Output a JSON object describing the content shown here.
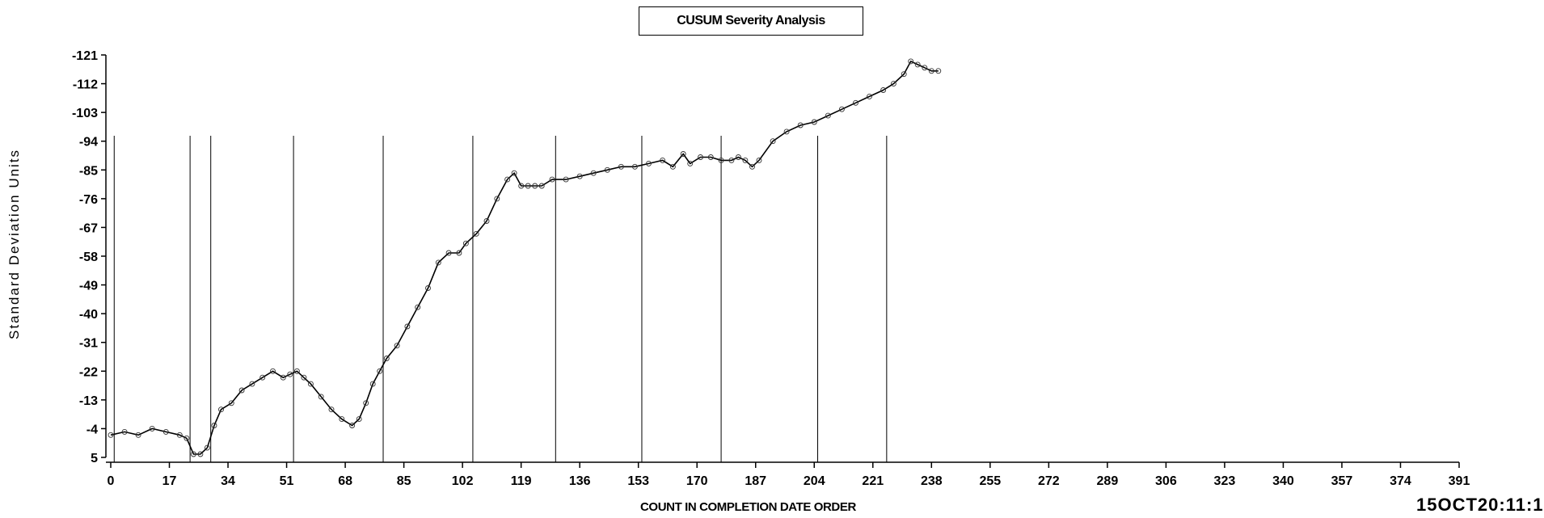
{
  "chart_data": {
    "type": "line",
    "title": "CUSUM Severity Analysis",
    "xlabel": "COUNT IN COMPLETION DATE ORDER",
    "ylabel": "Standard Deviation Units",
    "xlim": [
      0,
      391
    ],
    "ylim": [
      5,
      -121
    ],
    "x_ticks": [
      0,
      17,
      34,
      51,
      68,
      85,
      102,
      119,
      136,
      153,
      170,
      187,
      204,
      221,
      238,
      255,
      272,
      289,
      306,
      323,
      340,
      357,
      374,
      391
    ],
    "y_ticks": [
      -121,
      -112,
      -103,
      -94,
      -85,
      -76,
      -67,
      -58,
      -49,
      -40,
      -31,
      -22,
      -13,
      -4,
      5
    ],
    "y_tick_labels": [
      "-121",
      "-112",
      "-103",
      "-94",
      "-85",
      "-76",
      "-67",
      "-58",
      "-49",
      "-40",
      "-31",
      "-22",
      "-13",
      "-4",
      "5"
    ],
    "x_tick_labels": [
      "0",
      "17",
      "34",
      "51",
      "68",
      "85",
      "102",
      "119",
      "136",
      "153",
      "170",
      "187",
      "204",
      "221",
      "238",
      "255",
      "272",
      "289",
      "306",
      "323",
      "340",
      "357",
      "374",
      "391"
    ],
    "markers": "open circles",
    "reference_lines": [
      1,
      23,
      29,
      53,
      79,
      105,
      129,
      154,
      177,
      205,
      225
    ],
    "series": [
      {
        "x": [
          0,
          4,
          8,
          12,
          16,
          20,
          22,
          24,
          26,
          28,
          30,
          32,
          35,
          38,
          41,
          44,
          47,
          50,
          52,
          54,
          56,
          58,
          61,
          64,
          67,
          70,
          72,
          74,
          76,
          78,
          80,
          83,
          86,
          89,
          92,
          95,
          98,
          101,
          103,
          106,
          109,
          112,
          115,
          117,
          119,
          121,
          123,
          125,
          128,
          132,
          136,
          140,
          144,
          148,
          152,
          156,
          160,
          163,
          166,
          168,
          171,
          174,
          177,
          180,
          182,
          184,
          186,
          188,
          192,
          196,
          200,
          204,
          208,
          212,
          216,
          220,
          224,
          227,
          230,
          232,
          234,
          236,
          238,
          240
        ],
        "y": [
          -2,
          -3,
          -2,
          -4,
          -3,
          -2,
          -1,
          4,
          4,
          2,
          -5,
          -10,
          -12,
          -16,
          -18,
          -20,
          -22,
          -20,
          -21,
          -22,
          -20,
          -18,
          -14,
          -10,
          -7,
          -5,
          -7,
          -12,
          -18,
          -22,
          -26,
          -30,
          -36,
          -42,
          -48,
          -56,
          -59,
          -59,
          -62,
          -65,
          -69,
          -76,
          -82,
          -84,
          -80,
          -80,
          -80,
          -80,
          -82,
          -82,
          -83,
          -84,
          -85,
          -86,
          -86,
          -87,
          -88,
          -86,
          -90,
          -87,
          -89,
          -89,
          -88,
          -88,
          -89,
          -88,
          -86,
          -88,
          -94,
          -97,
          -99,
          -100,
          -102,
          -104,
          -106,
          -108,
          -110,
          -112,
          -115,
          -119,
          -118,
          -117,
          -116,
          -116
        ]
      }
    ]
  },
  "timestamp": "15OCT20:11:1",
  "colors": {
    "line": "#000000",
    "background": "#ffffff"
  }
}
